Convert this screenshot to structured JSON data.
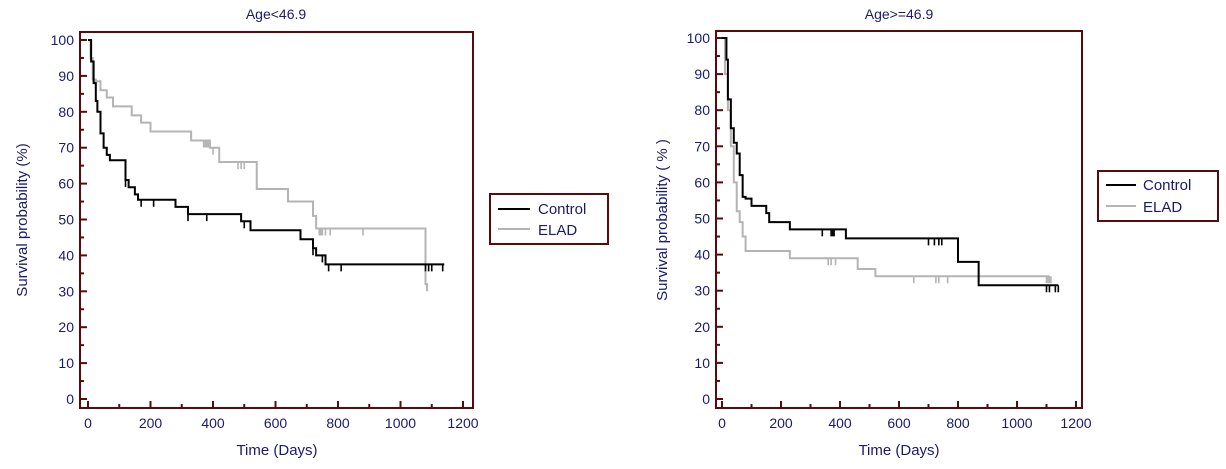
{
  "colors": {
    "axis": "#5a0a0a",
    "text": "#1a1a6e",
    "control": "#000000",
    "elad": "#b4b4b4"
  },
  "legend": {
    "items": [
      {
        "label": "Control",
        "color": "#000000"
      },
      {
        "label": "ELAD",
        "color": "#b4b4b4"
      }
    ]
  },
  "chart_data": [
    {
      "type": "line",
      "title": "Age<46.9",
      "xlabel": "Time (Days)",
      "ylabel": "Survival probability (%)",
      "xlim": [
        0,
        1200
      ],
      "ylim": [
        0,
        100
      ],
      "xticks": [
        0,
        200,
        400,
        600,
        800,
        1000,
        1200
      ],
      "yticks": [
        0,
        10,
        20,
        30,
        40,
        50,
        60,
        70,
        80,
        90,
        100
      ],
      "legend_position": "right",
      "series": [
        {
          "name": "Control",
          "step": true,
          "x": [
            0,
            10,
            18,
            25,
            30,
            40,
            50,
            60,
            70,
            80,
            90,
            120,
            130,
            150,
            160,
            180,
            280,
            320,
            460,
            490,
            500,
            520,
            530,
            530,
            680,
            700,
            720,
            730,
            740,
            760,
            1140
          ],
          "y": [
            100,
            94,
            88,
            83,
            80,
            74,
            70,
            68,
            66.5,
            66.5,
            66.5,
            61,
            59,
            57,
            55.5,
            55.5,
            53.5,
            51.5,
            51.5,
            49.5,
            49.5,
            47,
            47,
            47,
            44.5,
            44.5,
            42,
            40,
            40,
            37.5,
            37.5
          ],
          "censored_x": [
            120,
            170,
            210,
            320,
            380,
            500,
            720,
            750,
            770,
            810,
            1080,
            1090,
            1100,
            1135
          ]
        },
        {
          "name": "ELAD",
          "step": true,
          "x": [
            0,
            8,
            15,
            25,
            40,
            60,
            80,
            100,
            140,
            170,
            200,
            280,
            330,
            350,
            390,
            420,
            520,
            540,
            640,
            720,
            730,
            1070,
            1080,
            1085
          ],
          "y": [
            100,
            95,
            89,
            88.5,
            86,
            84,
            81.5,
            81.5,
            79,
            77,
            74.5,
            74.5,
            72,
            72,
            70,
            66,
            66,
            58.5,
            55,
            51,
            47.5,
            47.5,
            32,
            30
          ],
          "censored_x": [
            370,
            375,
            380,
            385,
            400,
            480,
            490,
            500,
            740,
            745,
            750,
            760,
            775,
            880
          ]
        }
      ]
    },
    {
      "type": "line",
      "title": "Age>=46.9",
      "xlabel": "Time (Days)",
      "ylabel": "Survival probability ( % )",
      "xlim": [
        0,
        1200
      ],
      "ylim": [
        0,
        100
      ],
      "xticks": [
        0,
        200,
        400,
        600,
        800,
        1000,
        1200
      ],
      "yticks": [
        0,
        10,
        20,
        30,
        40,
        50,
        60,
        70,
        80,
        90,
        100
      ],
      "legend_position": "right",
      "series": [
        {
          "name": "Control",
          "step": true,
          "x": [
            0,
            15,
            20,
            30,
            40,
            50,
            60,
            70,
            80,
            100,
            150,
            160,
            230,
            420,
            800,
            870,
            1140
          ],
          "y": [
            100,
            94,
            83,
            75,
            71,
            68,
            62,
            56,
            55.5,
            53.5,
            51.5,
            49,
            47,
            44.5,
            38,
            31.5,
            31.5
          ],
          "censored_x": [
            340,
            370,
            375,
            380,
            700,
            720,
            735,
            745,
            1100,
            1110,
            1130,
            1140
          ]
        },
        {
          "name": "ELAD",
          "step": true,
          "x": [
            0,
            10,
            20,
            30,
            40,
            50,
            60,
            70,
            80,
            230,
            460,
            520,
            1110
          ],
          "y": [
            100,
            90,
            80,
            70,
            60,
            52,
            49,
            45,
            41,
            39,
            36,
            34,
            34
          ],
          "censored_x": [
            360,
            370,
            385,
            650,
            725,
            735,
            765,
            1100,
            1105,
            1110,
            1115
          ]
        }
      ]
    }
  ]
}
